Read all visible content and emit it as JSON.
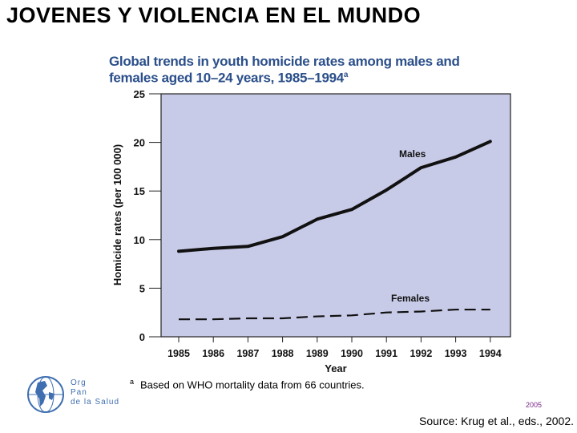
{
  "slide": {
    "title": "JOVENES Y VIOLENCIA EN EL MUNDO",
    "source": "Source: Krug et al., eds., 2002.",
    "year_tag": "2005"
  },
  "logo": {
    "lines": [
      "Org",
      "Pan",
      "de la Salud"
    ],
    "color": "#3f6fb0"
  },
  "chart_data": {
    "type": "line",
    "title_line1": "Global trends in youth homicide rates among males and",
    "title_line2": "females aged 10–24 years, 1985–1994",
    "title_marker": "a",
    "xlabel": "Year",
    "ylabel": "Homicide rates (per 100 000)",
    "x": [
      1985,
      1986,
      1987,
      1988,
      1989,
      1990,
      1991,
      1992,
      1993,
      1994
    ],
    "ylim": [
      0,
      25
    ],
    "yticks": [
      0,
      5,
      10,
      15,
      20,
      25
    ],
    "plot_background": "#c8cbe8",
    "series": [
      {
        "name": "Males",
        "style": "solid",
        "values": [
          8.8,
          9.1,
          9.3,
          10.3,
          12.1,
          13.1,
          15.1,
          17.4,
          18.5,
          20.1
        ]
      },
      {
        "name": "Females",
        "style": "dashed",
        "values": [
          1.8,
          1.8,
          1.9,
          1.9,
          2.1,
          2.2,
          2.5,
          2.6,
          2.8,
          2.8
        ]
      }
    ],
    "footnote_marker": "a",
    "footnote": "Based on WHO mortality data from 66 countries."
  }
}
